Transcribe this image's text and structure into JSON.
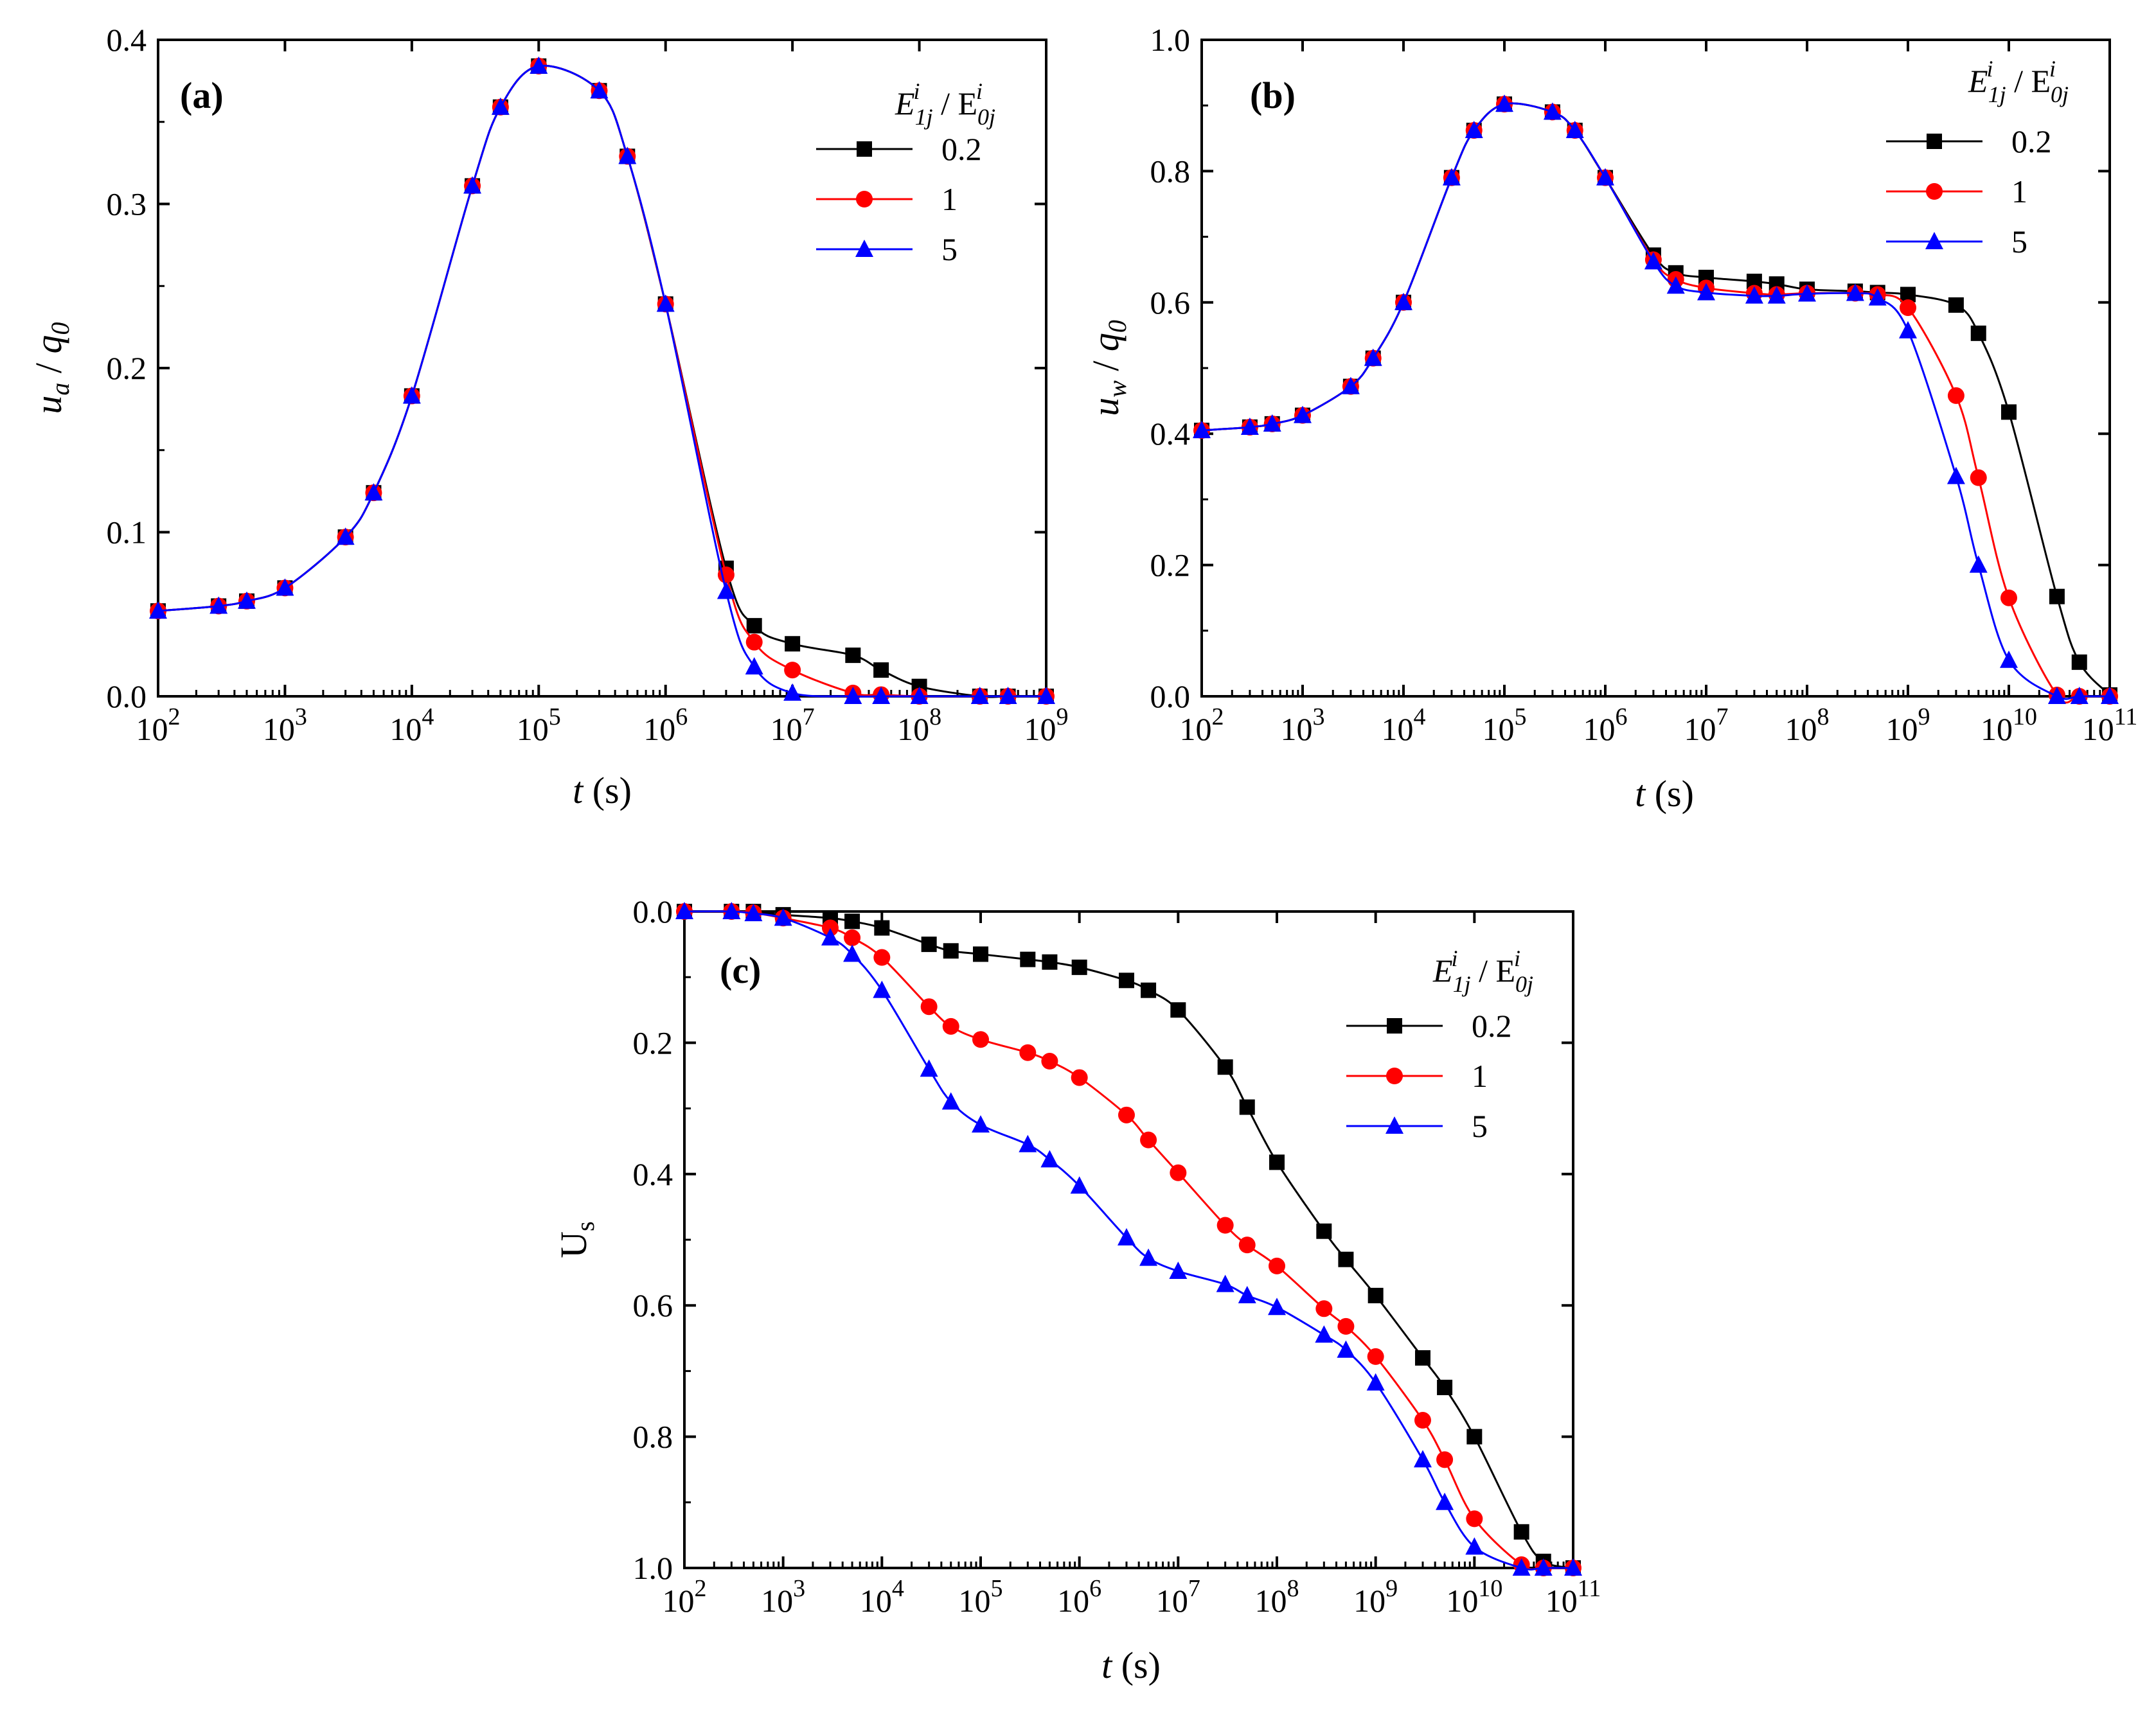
{
  "colors": {
    "black": "#000000",
    "red": "#ff0000",
    "blue": "#0000ff"
  },
  "legend": {
    "title": "E1j / E0j",
    "series_names": [
      "0.2",
      "1",
      "5"
    ]
  },
  "chart_data": [
    {
      "type": "line",
      "panel_label": "(a)",
      "xlabel": "t (s)",
      "ylabel": "ua / q0",
      "xscale": "log",
      "xlim": [
        100,
        1000000000
      ],
      "ylim": [
        0,
        0.4
      ],
      "yreverse": false,
      "xtick_exponents": [
        "2",
        "3",
        "4",
        "5",
        "6",
        "7",
        "8",
        "9"
      ],
      "ytick_labels": [
        "0.0",
        "0.1",
        "0.2",
        "0.3",
        "0.4"
      ],
      "series": [
        {
          "name": "0.2",
          "marker": "square",
          "color": "#000000",
          "x": [
            100,
            300,
            500,
            1000,
            3000,
            5000,
            10000,
            30000,
            50000,
            100000,
            300000,
            500000,
            1000000,
            3000000,
            5000000,
            10000000,
            30000000,
            50000000,
            100000000,
            300000000,
            500000000,
            1000000000
          ],
          "y": [
            0.052,
            0.055,
            0.058,
            0.066,
            0.097,
            0.124,
            0.183,
            0.311,
            0.359,
            0.384,
            0.369,
            0.329,
            0.239,
            0.078,
            0.043,
            0.032,
            0.025,
            0.016,
            0.006,
            0.0,
            0.0,
            0.0
          ]
        },
        {
          "name": "1",
          "marker": "circle",
          "color": "#ff0000",
          "x": [
            100,
            300,
            500,
            1000,
            3000,
            5000,
            10000,
            30000,
            50000,
            100000,
            300000,
            500000,
            1000000,
            3000000,
            5000000,
            10000000,
            30000000,
            50000000,
            100000000,
            300000000,
            500000000,
            1000000000
          ],
          "y": [
            0.052,
            0.055,
            0.058,
            0.066,
            0.097,
            0.124,
            0.183,
            0.311,
            0.359,
            0.384,
            0.369,
            0.329,
            0.239,
            0.074,
            0.033,
            0.016,
            0.002,
            0.001,
            0.0,
            0.0,
            0.0,
            0.0
          ]
        },
        {
          "name": "5",
          "marker": "triangle",
          "color": "#0000ff",
          "x": [
            100,
            300,
            500,
            1000,
            3000,
            5000,
            10000,
            30000,
            50000,
            100000,
            300000,
            500000,
            1000000,
            3000000,
            5000000,
            10000000,
            30000000,
            50000000,
            100000000,
            300000000,
            500000000,
            1000000000
          ],
          "y": [
            0.052,
            0.055,
            0.058,
            0.066,
            0.097,
            0.124,
            0.183,
            0.311,
            0.359,
            0.384,
            0.369,
            0.329,
            0.239,
            0.064,
            0.018,
            0.002,
            0.0,
            0.0,
            0.0,
            0.0,
            0.0,
            0.0
          ]
        }
      ]
    },
    {
      "type": "line",
      "panel_label": "(b)",
      "xlabel": "t (s)",
      "ylabel": "uw / q0",
      "xscale": "log",
      "xlim": [
        100,
        100000000000
      ],
      "ylim": [
        0,
        1.0
      ],
      "yreverse": false,
      "xtick_exponents": [
        "2",
        "3",
        "4",
        "5",
        "6",
        "7",
        "8",
        "9",
        "10",
        "11"
      ],
      "ytick_labels": [
        "0.0",
        "0.2",
        "0.4",
        "0.6",
        "0.8",
        "1.0"
      ],
      "series": [
        {
          "name": "0.2",
          "marker": "square",
          "color": "#000000",
          "x": [
            100,
            300,
            500,
            1000,
            3000,
            5000,
            10000,
            30000,
            50000,
            100000,
            300000,
            500000,
            1000000,
            3000000,
            5000000,
            10000000,
            30000000,
            50000000,
            100000000,
            300000000,
            500000000,
            1000000000,
            3000000000,
            5000000000,
            10000000000,
            30000000000,
            50000000000,
            100000000000
          ],
          "y": [
            0.405,
            0.41,
            0.415,
            0.428,
            0.472,
            0.515,
            0.6,
            0.79,
            0.862,
            0.902,
            0.89,
            0.862,
            0.79,
            0.672,
            0.645,
            0.638,
            0.632,
            0.628,
            0.62,
            0.617,
            0.615,
            0.612,
            0.596,
            0.553,
            0.433,
            0.152,
            0.052,
            0.002
          ]
        },
        {
          "name": "1",
          "marker": "circle",
          "color": "#ff0000",
          "x": [
            100,
            300,
            500,
            1000,
            3000,
            5000,
            10000,
            30000,
            50000,
            100000,
            300000,
            500000,
            1000000,
            3000000,
            5000000,
            10000000,
            30000000,
            50000000,
            100000000,
            300000000,
            500000000,
            1000000000,
            3000000000,
            5000000000,
            10000000000,
            30000000000,
            50000000000,
            100000000000
          ],
          "y": [
            0.405,
            0.41,
            0.415,
            0.428,
            0.472,
            0.515,
            0.6,
            0.79,
            0.862,
            0.902,
            0.89,
            0.862,
            0.79,
            0.665,
            0.635,
            0.622,
            0.614,
            0.612,
            0.614,
            0.614,
            0.612,
            0.592,
            0.458,
            0.333,
            0.15,
            0.002,
            0.0,
            0.0
          ]
        },
        {
          "name": "5",
          "marker": "triangle",
          "color": "#0000ff",
          "x": [
            100,
            300,
            500,
            1000,
            3000,
            5000,
            10000,
            30000,
            50000,
            100000,
            300000,
            500000,
            1000000,
            3000000,
            5000000,
            10000000,
            30000000,
            50000000,
            100000000,
            300000000,
            500000000,
            1000000000,
            3000000000,
            5000000000,
            10000000000,
            30000000000,
            50000000000,
            100000000000
          ],
          "y": [
            0.405,
            0.41,
            0.415,
            0.428,
            0.472,
            0.515,
            0.6,
            0.79,
            0.862,
            0.902,
            0.89,
            0.862,
            0.79,
            0.662,
            0.625,
            0.615,
            0.61,
            0.61,
            0.613,
            0.614,
            0.607,
            0.557,
            0.335,
            0.2,
            0.055,
            0.0,
            0.0,
            0.0
          ]
        }
      ]
    },
    {
      "type": "line",
      "panel_label": "(c)",
      "xlabel": "t (s)",
      "ylabel": "Us",
      "xscale": "log",
      "xlim": [
        100,
        100000000000
      ],
      "ylim": [
        0,
        1.0
      ],
      "yreverse": true,
      "xtick_exponents": [
        "2",
        "3",
        "4",
        "5",
        "6",
        "7",
        "8",
        "9",
        "10",
        "11"
      ],
      "ytick_labels": [
        "0.0",
        "0.2",
        "0.4",
        "0.6",
        "0.8",
        "1.0"
      ],
      "series": [
        {
          "name": "0.2",
          "marker": "square",
          "color": "#000000",
          "x": [
            100,
            300,
            500,
            1000,
            3000,
            5000,
            10000,
            30000,
            50000,
            100000,
            300000,
            500000,
            1000000,
            3000000,
            5000000,
            10000000,
            30000000,
            50000000,
            100000000,
            300000000,
            500000000,
            1000000000,
            3000000000,
            5000000000,
            10000000000,
            30000000000,
            50000000000,
            100000000000
          ],
          "y": [
            0.0,
            0.0,
            0.0,
            0.005,
            0.01,
            0.015,
            0.025,
            0.05,
            0.06,
            0.065,
            0.073,
            0.077,
            0.085,
            0.105,
            0.12,
            0.15,
            0.237,
            0.298,
            0.382,
            0.487,
            0.53,
            0.585,
            0.68,
            0.725,
            0.8,
            0.945,
            0.99,
            1.0
          ]
        },
        {
          "name": "1",
          "marker": "circle",
          "color": "#ff0000",
          "x": [
            100,
            300,
            500,
            1000,
            3000,
            5000,
            10000,
            30000,
            50000,
            100000,
            300000,
            500000,
            1000000,
            3000000,
            5000000,
            10000000,
            30000000,
            50000000,
            100000000,
            300000000,
            500000000,
            1000000000,
            3000000000,
            5000000000,
            10000000000,
            30000000000,
            50000000000,
            100000000000
          ],
          "y": [
            0.0,
            0.0,
            0.002,
            0.01,
            0.025,
            0.04,
            0.07,
            0.145,
            0.175,
            0.195,
            0.215,
            0.228,
            0.253,
            0.31,
            0.348,
            0.398,
            0.478,
            0.508,
            0.54,
            0.605,
            0.632,
            0.678,
            0.775,
            0.835,
            0.925,
            0.995,
            1.0,
            1.0
          ]
        },
        {
          "name": "5",
          "marker": "triangle",
          "color": "#0000ff",
          "x": [
            100,
            300,
            500,
            1000,
            3000,
            5000,
            10000,
            30000,
            50000,
            100000,
            300000,
            500000,
            1000000,
            3000000,
            5000000,
            10000000,
            30000000,
            50000000,
            100000000,
            300000000,
            500000000,
            1000000000,
            3000000000,
            5000000000,
            10000000000,
            30000000000,
            50000000000,
            100000000000
          ],
          "y": [
            0.0,
            0.0,
            0.003,
            0.01,
            0.04,
            0.065,
            0.12,
            0.24,
            0.29,
            0.325,
            0.355,
            0.378,
            0.418,
            0.497,
            0.528,
            0.548,
            0.568,
            0.585,
            0.603,
            0.645,
            0.668,
            0.718,
            0.835,
            0.9,
            0.968,
            1.0,
            1.0,
            1.0
          ]
        }
      ]
    }
  ]
}
